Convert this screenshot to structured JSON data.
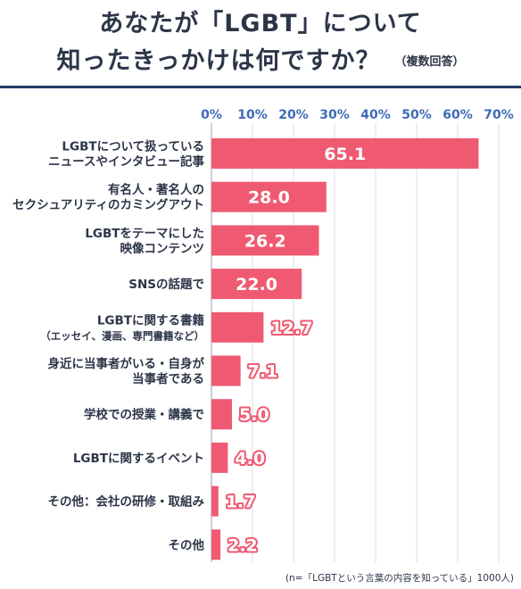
{
  "title": {
    "line1": "あなたが「LGBT」について",
    "line2": "知ったきっかけは何ですか？",
    "note": "（複数回答）"
  },
  "footnote": "(n=「LGBTという言葉の内容を知っている」1000人)",
  "chart_data": {
    "type": "bar",
    "orientation": "horizontal",
    "categories": [
      [
        "LGBTについて扱っている",
        "ニュースやインタビュー記事"
      ],
      [
        "有名人・著名人の",
        "セクシュアリティのカミングアウト"
      ],
      [
        "LGBTをテーマにした",
        "映像コンテンツ"
      ],
      [
        "SNSの話題で"
      ],
      [
        "LGBTに関する書籍",
        "（エッセイ、漫画、専門書籍など）"
      ],
      [
        "身近に当事者がいる・自身が",
        "当事者である"
      ],
      [
        "学校での授業・講義で"
      ],
      [
        "LGBTに関するイベント"
      ],
      [
        "その他：会社の研修・取組み"
      ],
      [
        "その他"
      ]
    ],
    "values": [
      65.1,
      28.0,
      26.2,
      22.0,
      12.7,
      7.1,
      5.0,
      4.0,
      1.7,
      2.2
    ],
    "value_labels": [
      "65.1",
      "28.0",
      "26.2",
      "22.0",
      "12.7",
      "7.1",
      "5.0",
      "4.0",
      "1.7",
      "2.2"
    ],
    "xlim": [
      0,
      70
    ],
    "xticks": [
      "0%",
      "10%",
      "20%",
      "30%",
      "40%",
      "50%",
      "60%",
      "70%"
    ],
    "grid": true,
    "bar_color": "#ef5a72",
    "tick_color": "#3f6ab5"
  }
}
